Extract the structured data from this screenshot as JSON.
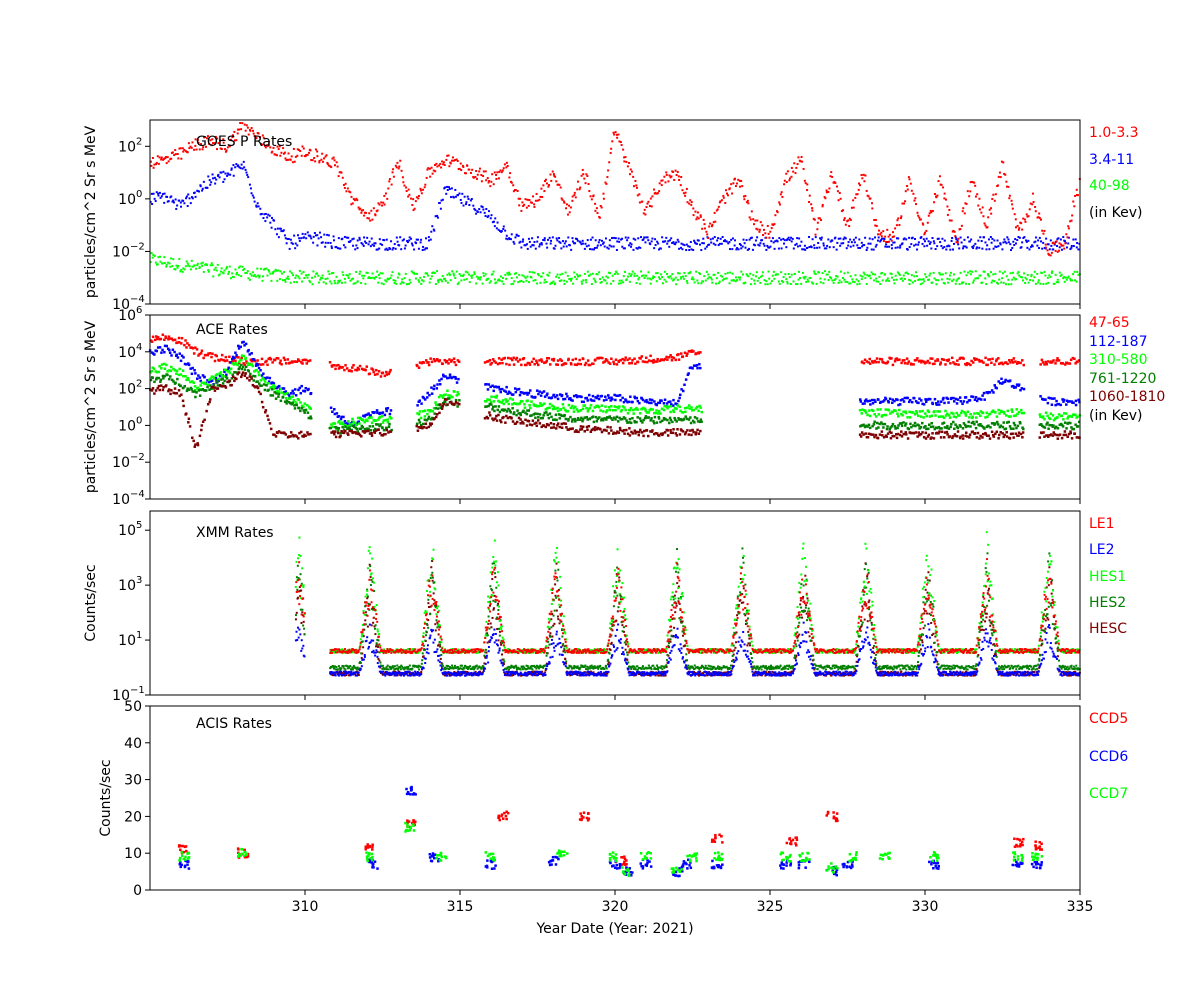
{
  "chart_data": [
    {
      "id": "goes",
      "type": "scatter",
      "title": "GOES P Rates",
      "xlabel": "",
      "ylabel": "particles/cm^2 Sr s MeV",
      "yscale": "log",
      "xlim": [
        305,
        335
      ],
      "ylim": [
        0.0001,
        1000
      ],
      "yticks": [
        {
          "value": 0.0001,
          "base": "10",
          "exp": "−4"
        },
        {
          "value": 0.01,
          "base": "10",
          "exp": "−2"
        },
        {
          "value": 1,
          "base": "10",
          "exp": "0"
        },
        {
          "value": 100,
          "base": "10",
          "exp": "2"
        }
      ],
      "legend_note": "(in Kev)",
      "series": [
        {
          "name": "1.0-3.3",
          "color": "#ff0000",
          "x": [
            305.0,
            305.5,
            306.0,
            306.5,
            307.0,
            307.5,
            308.0,
            308.5,
            309.0,
            309.5,
            310.0,
            310.5,
            311.0,
            311.5,
            312.0,
            312.5,
            313.0,
            313.5,
            314.0,
            314.5,
            315.0,
            315.5,
            316.0,
            316.5,
            317.0,
            317.5,
            318.0,
            318.5,
            319.0,
            319.5,
            320.0,
            320.5,
            321.0,
            321.5,
            322.0,
            322.5,
            323.0,
            323.5,
            324.0,
            324.5,
            325.0,
            325.5,
            326.0,
            326.5,
            327.0,
            327.5,
            328.0,
            328.5,
            329.0,
            329.5,
            330.0,
            330.5,
            331.0,
            331.5,
            332.0,
            332.5,
            333.0,
            333.5,
            334.0,
            334.5,
            335.0
          ],
          "y": [
            25,
            30,
            50,
            120,
            150,
            100,
            700,
            200,
            80,
            40,
            60,
            40,
            20,
            1,
            0.2,
            0.5,
            30,
            0.5,
            10,
            30,
            20,
            10,
            5,
            20,
            0.5,
            1,
            10,
            0.3,
            10,
            0.2,
            400,
            10,
            0.3,
            5,
            10,
            0.5,
            0.05,
            1,
            5,
            0.1,
            0.05,
            5,
            30,
            0.05,
            10,
            0.1,
            10,
            0.05,
            0.03,
            5,
            0.05,
            5,
            0.02,
            5,
            0.1,
            20,
            0.05,
            1,
            0.01,
            0.02,
            5
          ]
        },
        {
          "name": "3.4-11",
          "color": "#0000ff",
          "x": [
            305.0,
            305.5,
            306.0,
            306.5,
            307.0,
            307.5,
            308.0,
            308.5,
            309.0,
            309.5,
            310.0,
            310.5,
            311.0,
            312.0,
            313.0,
            314.0,
            314.5,
            315.0,
            315.5,
            316.0,
            316.5,
            317.0,
            318.0,
            320.0,
            322.0,
            324.0,
            326.0,
            328.0,
            330.0,
            332.0,
            334.0,
            335.0
          ],
          "y": [
            1,
            1.2,
            0.5,
            2,
            5,
            8,
            20,
            0.5,
            0.1,
            0.02,
            0.03,
            0.03,
            0.02,
            0.02,
            0.02,
            0.02,
            2,
            1,
            0.5,
            0.2,
            0.05,
            0.02,
            0.02,
            0.02,
            0.02,
            0.02,
            0.02,
            0.02,
            0.02,
            0.02,
            0.02,
            0.02
          ]
        },
        {
          "name": "40-98",
          "color": "#00ff00",
          "x": [
            305.0,
            306.0,
            307.0,
            308.0,
            309.0,
            310.0,
            312.0,
            315.0,
            320.0,
            325.0,
            330.0,
            335.0
          ],
          "y": [
            0.005,
            0.003,
            0.002,
            0.0015,
            0.0012,
            0.001,
            0.001,
            0.001,
            0.001,
            0.001,
            0.001,
            0.001
          ]
        }
      ]
    },
    {
      "id": "ace",
      "type": "scatter",
      "title": "ACE Rates",
      "xlabel": "",
      "ylabel": "particles/cm^2 Sr s MeV",
      "yscale": "log",
      "xlim": [
        305,
        335
      ],
      "ylim": [
        0.0001,
        1000000
      ],
      "yticks": [
        {
          "value": 0.0001,
          "base": "10",
          "exp": "−4"
        },
        {
          "value": 0.01,
          "base": "10",
          "exp": "−2"
        },
        {
          "value": 1,
          "base": "10",
          "exp": "0"
        },
        {
          "value": 100,
          "base": "10",
          "exp": "2"
        },
        {
          "value": 10000,
          "base": "10",
          "exp": "4"
        },
        {
          "value": 1000000,
          "base": "10",
          "exp": "6"
        }
      ],
      "legend_note": "(in Kev)",
      "series": [
        {
          "name": "47-65",
          "color": "#ff0000",
          "x": [
            305.0,
            305.5,
            306.0,
            306.5,
            307.0,
            307.5,
            308.0,
            308.5,
            309.0,
            309.5,
            310.0,
            312.0,
            312.5,
            314.0,
            315.0,
            316.0,
            318.0,
            320.0,
            322.0,
            322.5,
            328.0,
            330.0,
            332.0,
            333.0,
            334.0,
            335.0
          ],
          "y": [
            50000,
            60000,
            40000,
            10000,
            5000,
            4000,
            3000,
            3000,
            3000,
            3000,
            3000,
            1000,
            500,
            3000,
            3000,
            3000,
            3000,
            3000,
            5000,
            8000,
            3000,
            3000,
            3000,
            3000,
            3000,
            3000
          ]
        },
        {
          "name": "112-187",
          "color": "#0000ff",
          "x": [
            305.0,
            305.5,
            306.0,
            306.5,
            307.0,
            307.5,
            308.0,
            308.5,
            309.0,
            309.5,
            310.0,
            311.5,
            312.0,
            312.5,
            313.5,
            314.0,
            314.5,
            316.0,
            317.0,
            318.0,
            319.0,
            320.0,
            321.0,
            322.0,
            322.5,
            328.0,
            329.0,
            330.0,
            331.0,
            332.0,
            332.5,
            333.5,
            334.0,
            335.0
          ],
          "y": [
            10000,
            15000,
            5000,
            500,
            200,
            1000,
            50000,
            1000,
            200,
            50,
            100,
            1,
            3,
            5,
            10,
            50,
            500,
            100,
            60,
            40,
            30,
            30,
            20,
            15,
            2000,
            20,
            20,
            20,
            20,
            40,
            300,
            50,
            20,
            20
          ]
        },
        {
          "name": "310-580",
          "color": "#00ff00",
          "x": [
            305.0,
            305.5,
            306.0,
            306.5,
            307.0,
            307.5,
            308.0,
            308.5,
            309.0,
            311.0,
            312.0,
            313.0,
            314.0,
            314.5,
            316.0,
            317.0,
            318.0,
            319.0,
            320.0,
            321.0,
            322.0,
            328.0,
            330.0,
            332.0,
            333.0,
            334.0,
            335.0
          ],
          "y": [
            1000,
            1500,
            800,
            100,
            300,
            800,
            5000,
            500,
            100,
            1,
            2,
            2,
            5,
            50,
            30,
            15,
            10,
            8,
            8,
            6,
            8,
            5,
            4,
            4,
            5,
            3,
            3
          ]
        },
        {
          "name": "761-1220",
          "color": "#007f00",
          "x": [
            305.0,
            305.5,
            306.0,
            306.5,
            307.0,
            307.5,
            308.0,
            308.5,
            309.0,
            311.0,
            312.0,
            313.0,
            314.0,
            314.5,
            316.0,
            317.0,
            318.0,
            319.0,
            320.0,
            321.0,
            322.0,
            328.0,
            330.0,
            332.0,
            333.0,
            334.0,
            335.0
          ],
          "y": [
            300,
            400,
            200,
            50,
            150,
            300,
            2000,
            200,
            50,
            0.5,
            0.8,
            0.8,
            2,
            20,
            10,
            5,
            3,
            2,
            2,
            2,
            2,
            1,
            1,
            1,
            1,
            1,
            1
          ]
        },
        {
          "name": "1060-1810",
          "color": "#7f0000",
          "x": [
            305.0,
            305.5,
            306.0,
            306.5,
            307.0,
            307.5,
            308.0,
            308.5,
            309.0,
            309.5,
            310.0,
            311.0,
            312.0,
            313.0,
            314.0,
            314.5,
            316.0,
            317.0,
            318.0,
            319.0,
            320.0,
            321.0,
            322.0,
            328.0,
            330.0,
            332.0,
            333.0,
            334.0,
            335.0
          ],
          "y": [
            80,
            100,
            50,
            0.05,
            80,
            150,
            800,
            80,
            0.3,
            0.3,
            0.3,
            0.3,
            0.4,
            0.4,
            1,
            20,
            3,
            1.5,
            1,
            0.6,
            0.5,
            0.4,
            0.4,
            0.3,
            0.3,
            0.3,
            0.3,
            0.3,
            0.3
          ]
        }
      ]
    },
    {
      "id": "xmm",
      "type": "scatter",
      "title": "XMM Rates",
      "xlabel": "",
      "ylabel": "Counts/sec",
      "yscale": "log",
      "xlim": [
        305,
        335
      ],
      "ylim": [
        0.1,
        500000
      ],
      "yticks": [
        {
          "value": 0.1,
          "base": "10",
          "exp": "−1"
        },
        {
          "value": 10,
          "base": "10",
          "exp": "1"
        },
        {
          "value": 1000,
          "base": "10",
          "exp": "3"
        },
        {
          "value": 100000,
          "base": "10",
          "exp": "5"
        }
      ],
      "peaks": [
        309.8,
        312.1,
        314.1,
        316.1,
        318.1,
        320.1,
        322.0,
        324.1,
        326.1,
        328.1,
        330.1,
        332.0,
        334.0
      ],
      "series": [
        {
          "name": "LE1",
          "color": "#ff0000",
          "baseline": 4,
          "peak": 10000
        },
        {
          "name": "LE2",
          "color": "#0000ff",
          "baseline": 0.6,
          "peak": 50
        },
        {
          "name": "HES1",
          "color": "#00ff00",
          "baseline": 4,
          "peak": 100000
        },
        {
          "name": "HES2",
          "color": "#007f00",
          "baseline": 1,
          "peak": 30000
        },
        {
          "name": "HESC",
          "color": "#7f0000",
          "baseline": 0.6,
          "peak": 10000
        }
      ]
    },
    {
      "id": "acis",
      "type": "scatter",
      "title": "ACIS Rates",
      "xlabel": "Year Date (Year: 2021)",
      "ylabel": "Counts/sec",
      "yscale": "linear",
      "xlim": [
        305,
        335
      ],
      "ylim": [
        0,
        50
      ],
      "yticks": [
        {
          "value": 0,
          "label": "0"
        },
        {
          "value": 10,
          "label": "10"
        },
        {
          "value": 20,
          "label": "20"
        },
        {
          "value": 30,
          "label": "30"
        },
        {
          "value": 40,
          "label": "40"
        },
        {
          "value": 50,
          "label": "50"
        }
      ],
      "xticks": [
        {
          "value": 310,
          "label": "310"
        },
        {
          "value": 315,
          "label": "315"
        },
        {
          "value": 320,
          "label": "320"
        },
        {
          "value": 325,
          "label": "325"
        },
        {
          "value": 330,
          "label": "330"
        },
        {
          "value": 335,
          "label": "335"
        }
      ],
      "series": [
        {
          "name": "CCD5",
          "color": "#ff0000",
          "x": [
            306.1,
            308.0,
            312.1,
            313.4,
            316.4,
            319.0,
            320.2,
            323.3,
            325.7,
            327.0,
            333.0,
            333.6
          ],
          "y": [
            11,
            10,
            12,
            18,
            20,
            20,
            8,
            14,
            13,
            20,
            13,
            12
          ]
        },
        {
          "name": "CCD6",
          "color": "#0000ff",
          "x": [
            306.1,
            312.2,
            313.4,
            314.2,
            316.0,
            318.0,
            320.0,
            320.4,
            321.0,
            322.0,
            322.3,
            323.3,
            325.5,
            326.1,
            327.0,
            327.5,
            330.3,
            333.0,
            333.6
          ],
          "y": [
            7,
            7,
            27,
            9,
            7,
            8,
            7,
            5,
            7,
            5,
            7,
            7,
            7,
            7,
            5,
            7,
            7,
            7,
            7
          ]
        },
        {
          "name": "CCD7",
          "color": "#00ff00",
          "x": [
            306.1,
            308.0,
            312.1,
            313.4,
            314.4,
            316.0,
            318.3,
            320.0,
            320.4,
            321.0,
            322.0,
            322.5,
            323.3,
            325.5,
            326.1,
            327.0,
            327.7,
            328.7,
            330.3,
            333.0,
            333.6
          ],
          "y": [
            9,
            10,
            9,
            17,
            9,
            9,
            10,
            9,
            5,
            9,
            5,
            9,
            9,
            9,
            9,
            6,
            9,
            9,
            9,
            9,
            9
          ]
        }
      ]
    }
  ]
}
